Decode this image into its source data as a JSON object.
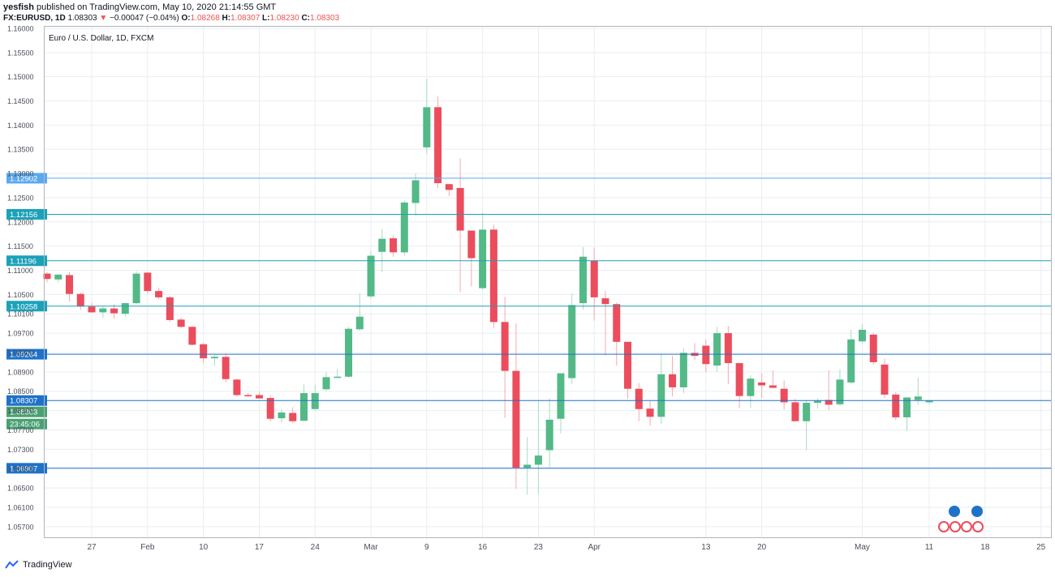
{
  "header": {
    "author": "yesfish",
    "published_text": "published on TradingView.com, May 10, 2020 21:14:55 GMT",
    "symbol": "FX:EURUSD, 1D",
    "last": "1.08303",
    "change": "−0.00047 (−0.04%)",
    "o_label": "O:",
    "o_value": "1.08268",
    "h_label": "H:",
    "h_value": "1.08307",
    "l_label": "L:",
    "l_value": "1.08230",
    "c_label": "C:",
    "c_value": "1.08303"
  },
  "chart_data": {
    "type": "candlestick",
    "title": "Euro / U.S. Dollar, 1D, FXCM",
    "ylim": [
      1.0548,
      1.1605
    ],
    "y_ticks": [
      "1.05700",
      "1.06100",
      "1.06500",
      "1.06900",
      "1.07300",
      "1.07700",
      "1.08100",
      "1.08500",
      "1.08900",
      "1.09300",
      "1.09700",
      "1.10100",
      "1.10500",
      "1.11000",
      "1.11500",
      "1.12000",
      "1.12500",
      "1.13000",
      "1.13500",
      "1.14000",
      "1.14500",
      "1.15000",
      "1.15500",
      "1.16000"
    ],
    "x_ticks": [
      "27",
      "Feb",
      "10",
      "17",
      "24",
      "Mar",
      "9",
      "16",
      "23",
      "Apr",
      "13",
      "20",
      "May",
      "11",
      "18",
      "25"
    ],
    "colors": {
      "up": "#53b987",
      "down": "#eb4d5c",
      "grid": "#e9eef2",
      "axis": "#b2b5be"
    },
    "horizontal_levels": [
      {
        "label": "1.12902",
        "value": 1.12902,
        "color": "#5aa9f0"
      },
      {
        "label": "1.12156",
        "value": 1.12156,
        "color": "#1ba1b8"
      },
      {
        "label": "1.11196",
        "value": 1.11196,
        "color": "#1ba1b8"
      },
      {
        "label": "1.10258",
        "value": 1.10258,
        "color": "#1ba1b8"
      },
      {
        "label": "1.09264",
        "value": 1.09264,
        "color": "#1e72c8"
      },
      {
        "label": "1.08307",
        "value": 1.08307,
        "color": "#1e72c8"
      },
      {
        "label": "1.06907",
        "value": 1.06907,
        "color": "#1e72c8"
      }
    ],
    "price_tags": [
      {
        "label": "1.08303",
        "color": "#4aa173"
      },
      {
        "label": "23:45:06",
        "color": "#4aa173"
      }
    ],
    "candles": [
      {
        "o": 1.1093,
        "h": 1.1096,
        "l": 1.1075,
        "c": 1.1082
      },
      {
        "o": 1.1081,
        "h": 1.1091,
        "l": 1.1075,
        "c": 1.1091
      },
      {
        "o": 1.109,
        "h": 1.1097,
        "l": 1.1035,
        "c": 1.1051
      },
      {
        "o": 1.1051,
        "h": 1.1054,
        "l": 1.1018,
        "c": 1.1025
      },
      {
        "o": 1.1025,
        "h": 1.1033,
        "l": 1.1012,
        "c": 1.1013
      },
      {
        "o": 1.1013,
        "h": 1.1027,
        "l": 1.1002,
        "c": 1.1021
      },
      {
        "o": 1.1021,
        "h": 1.103,
        "l": 1.1,
        "c": 1.1011
      },
      {
        "o": 1.101,
        "h": 1.1032,
        "l": 1.1004,
        "c": 1.1032
      },
      {
        "o": 1.1032,
        "h": 1.1098,
        "l": 1.103,
        "c": 1.1093
      },
      {
        "o": 1.1095,
        "h": 1.1096,
        "l": 1.1051,
        "c": 1.1057
      },
      {
        "o": 1.1057,
        "h": 1.1064,
        "l": 1.104,
        "c": 1.1044
      },
      {
        "o": 1.1044,
        "h": 1.1047,
        "l": 1.0993,
        "c": 1.0997
      },
      {
        "o": 1.0998,
        "h": 1.1002,
        "l": 1.098,
        "c": 1.0983
      },
      {
        "o": 1.0983,
        "h": 1.0985,
        "l": 1.0944,
        "c": 1.0946
      },
      {
        "o": 1.0947,
        "h": 1.095,
        "l": 1.0908,
        "c": 1.0918
      },
      {
        "o": 1.0918,
        "h": 1.0927,
        "l": 1.0902,
        "c": 1.0921
      },
      {
        "o": 1.0921,
        "h": 1.0928,
        "l": 1.0868,
        "c": 1.0875
      },
      {
        "o": 1.0874,
        "h": 1.0876,
        "l": 1.0839,
        "c": 1.0842
      },
      {
        "o": 1.0842,
        "h": 1.0846,
        "l": 1.0838,
        "c": 1.084
      },
      {
        "o": 1.0842,
        "h": 1.085,
        "l": 1.0835,
        "c": 1.0835
      },
      {
        "o": 1.0836,
        "h": 1.0842,
        "l": 1.0787,
        "c": 1.0793
      },
      {
        "o": 1.0794,
        "h": 1.0812,
        "l": 1.0786,
        "c": 1.0806
      },
      {
        "o": 1.0805,
        "h": 1.0817,
        "l": 1.0784,
        "c": 1.0788
      },
      {
        "o": 1.0789,
        "h": 1.0864,
        "l": 1.0787,
        "c": 1.0846
      },
      {
        "o": 1.0813,
        "h": 1.0863,
        "l": 1.081,
        "c": 1.0846
      },
      {
        "o": 1.0854,
        "h": 1.0889,
        "l": 1.085,
        "c": 1.0879
      },
      {
        "o": 1.088,
        "h": 1.0896,
        "l": 1.0877,
        "c": 1.088
      },
      {
        "o": 1.088,
        "h": 1.0983,
        "l": 1.0878,
        "c": 1.0979
      },
      {
        "o": 1.0978,
        "h": 1.1053,
        "l": 1.0975,
        "c": 1.1004
      },
      {
        "o": 1.1046,
        "h": 1.114,
        "l": 1.1042,
        "c": 1.113
      },
      {
        "o": 1.1138,
        "h": 1.1185,
        "l": 1.1096,
        "c": 1.1165
      },
      {
        "o": 1.1166,
        "h": 1.1172,
        "l": 1.1128,
        "c": 1.1137
      },
      {
        "o": 1.1137,
        "h": 1.1244,
        "l": 1.113,
        "c": 1.124
      },
      {
        "o": 1.1239,
        "h": 1.13,
        "l": 1.1212,
        "c": 1.1286
      },
      {
        "o": 1.1354,
        "h": 1.1496,
        "l": 1.134,
        "c": 1.1437
      },
      {
        "o": 1.1437,
        "h": 1.1459,
        "l": 1.127,
        "c": 1.128
      },
      {
        "o": 1.1278,
        "h": 1.1278,
        "l": 1.1253,
        "c": 1.1266
      },
      {
        "o": 1.127,
        "h": 1.1331,
        "l": 1.1055,
        "c": 1.1182
      },
      {
        "o": 1.1182,
        "h": 1.1182,
        "l": 1.1067,
        "c": 1.1125
      },
      {
        "o": 1.1063,
        "h": 1.122,
        "l": 1.106,
        "c": 1.1184
      },
      {
        "o": 1.1184,
        "h": 1.1194,
        "l": 1.0981,
        "c": 1.0993
      },
      {
        "o": 1.0993,
        "h": 1.1045,
        "l": 1.0795,
        "c": 1.0892
      },
      {
        "o": 1.0892,
        "h": 1.099,
        "l": 1.0648,
        "c": 1.0692
      },
      {
        "o": 1.0692,
        "h": 1.0755,
        "l": 1.0636,
        "c": 1.0698
      },
      {
        "o": 1.0698,
        "h": 1.0829,
        "l": 1.0637,
        "c": 1.0717
      },
      {
        "o": 1.0728,
        "h": 1.0835,
        "l": 1.0693,
        "c": 1.0791
      },
      {
        "o": 1.0793,
        "h": 1.0885,
        "l": 1.0763,
        "c": 1.0887
      },
      {
        "o": 1.0877,
        "h": 1.1052,
        "l": 1.0865,
        "c": 1.1028
      },
      {
        "o": 1.1032,
        "h": 1.1148,
        "l": 1.1019,
        "c": 1.1128
      },
      {
        "o": 1.112,
        "h": 1.1147,
        "l": 1.0996,
        "c": 1.1044
      },
      {
        "o": 1.1042,
        "h": 1.1057,
        "l": 1.0924,
        "c": 1.103
      },
      {
        "o": 1.103,
        "h": 1.1033,
        "l": 1.0903,
        "c": 1.0952
      },
      {
        "o": 1.0952,
        "h": 1.0952,
        "l": 1.0834,
        "c": 1.0855
      },
      {
        "o": 1.0855,
        "h": 1.0867,
        "l": 1.0788,
        "c": 1.0813
      },
      {
        "o": 1.0814,
        "h": 1.083,
        "l": 1.0779,
        "c": 1.0797
      },
      {
        "o": 1.0797,
        "h": 1.0927,
        "l": 1.0782,
        "c": 1.0885
      },
      {
        "o": 1.0885,
        "h": 1.0923,
        "l": 1.0839,
        "c": 1.0858
      },
      {
        "o": 1.0858,
        "h": 1.0939,
        "l": 1.0846,
        "c": 1.0929
      },
      {
        "o": 1.0929,
        "h": 1.0949,
        "l": 1.0914,
        "c": 1.0923
      },
      {
        "o": 1.0944,
        "h": 1.0957,
        "l": 1.0889,
        "c": 1.0906
      },
      {
        "o": 1.0903,
        "h": 1.0983,
        "l": 1.089,
        "c": 1.097
      },
      {
        "o": 1.097,
        "h": 1.0985,
        "l": 1.0865,
        "c": 1.0908
      },
      {
        "o": 1.0908,
        "h": 1.0909,
        "l": 1.0815,
        "c": 1.084
      },
      {
        "o": 1.084,
        "h": 1.0883,
        "l": 1.0815,
        "c": 1.0876
      },
      {
        "o": 1.0868,
        "h": 1.0887,
        "l": 1.0836,
        "c": 1.0862
      },
      {
        "o": 1.0862,
        "h": 1.0893,
        "l": 1.0856,
        "c": 1.0857
      },
      {
        "o": 1.0855,
        "h": 1.0872,
        "l": 1.0812,
        "c": 1.0827
      },
      {
        "o": 1.0827,
        "h": 1.0834,
        "l": 1.0787,
        "c": 1.0788
      },
      {
        "o": 1.0788,
        "h": 1.0832,
        "l": 1.0728,
        "c": 1.0826
      },
      {
        "o": 1.0826,
        "h": 1.0835,
        "l": 1.0814,
        "c": 1.083
      },
      {
        "o": 1.0832,
        "h": 1.0893,
        "l": 1.0811,
        "c": 1.0822
      },
      {
        "o": 1.0823,
        "h": 1.0895,
        "l": 1.082,
        "c": 1.0874
      },
      {
        "o": 1.0868,
        "h": 1.0977,
        "l": 1.0865,
        "c": 1.0957
      },
      {
        "o": 1.0953,
        "h": 1.0989,
        "l": 1.0949,
        "c": 1.0977
      },
      {
        "o": 1.0967,
        "h": 1.097,
        "l": 1.0905,
        "c": 1.091
      },
      {
        "o": 1.0905,
        "h": 1.0917,
        "l": 1.0836,
        "c": 1.0843
      },
      {
        "o": 1.0843,
        "h": 1.0848,
        "l": 1.079,
        "c": 1.0796
      },
      {
        "o": 1.0796,
        "h": 1.0834,
        "l": 1.0768,
        "c": 1.0837
      },
      {
        "o": 1.0832,
        "h": 1.0878,
        "l": 1.0822,
        "c": 1.0839
      },
      {
        "o": 1.0827,
        "h": 1.0831,
        "l": 1.0823,
        "c": 1.083
      }
    ]
  },
  "footer": {
    "brand": "TradingView"
  }
}
